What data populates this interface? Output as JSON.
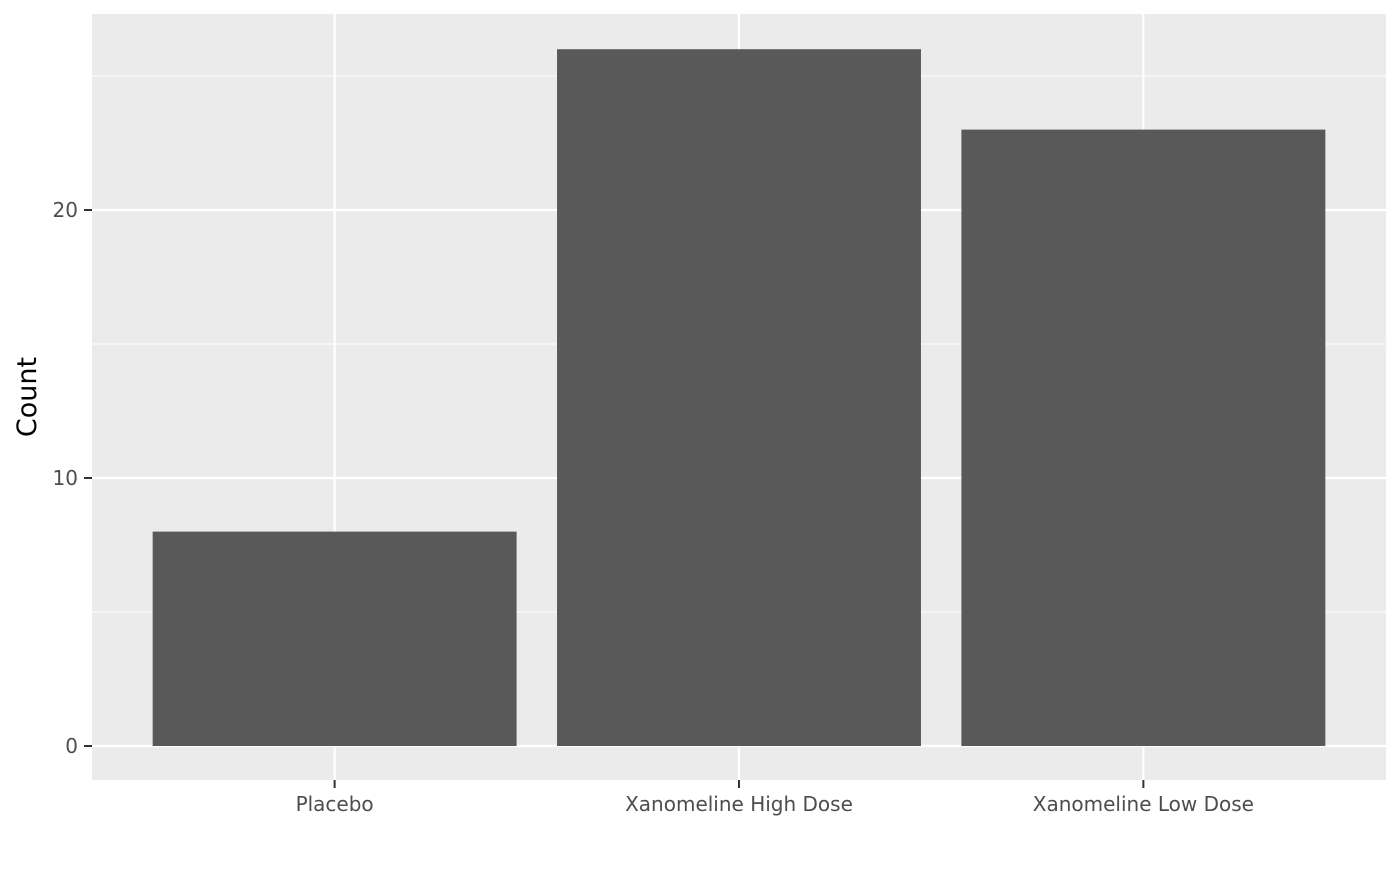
{
  "chart_data": {
    "type": "bar",
    "title": "",
    "xlabel": "",
    "ylabel": "Count",
    "categories": [
      "Placebo",
      "Xanomeline High Dose",
      "Xanomeline Low Dose"
    ],
    "values": [
      8,
      26,
      23
    ],
    "ylim": [
      0,
      27.3
    ],
    "yticks": [
      0,
      10,
      20
    ],
    "grid": true,
    "legend": "none",
    "colors": {
      "panel_background": "#ebebeb",
      "grid_line": "#ffffff",
      "bar_fill": "#595959",
      "tick_color": "#333333"
    }
  }
}
